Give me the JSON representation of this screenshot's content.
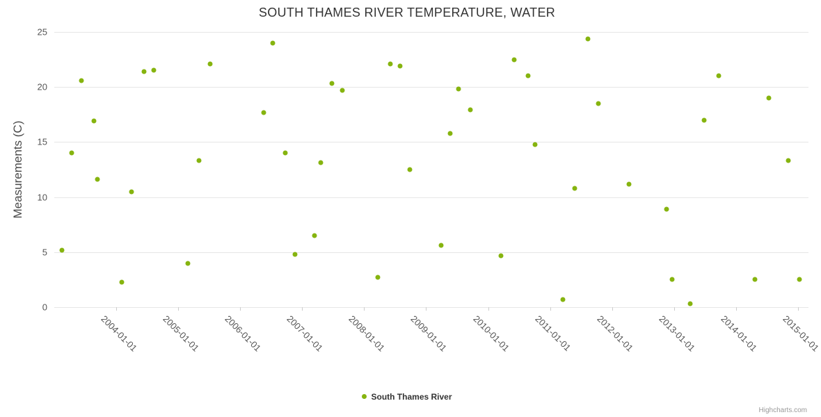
{
  "chart": {
    "title": "SOUTH THAMES RIVER TEMPERATURE, WATER",
    "y_axis_title": "Measurements (C)",
    "legend_label": "South Thames River",
    "credits": "Highcharts.com",
    "accent_color": "#86b40f"
  },
  "chart_data": {
    "type": "scatter",
    "title": "SOUTH THAMES RIVER TEMPERATURE, WATER",
    "xlabel": "",
    "ylabel": "Measurements (C)",
    "x_unit": "decimal_year",
    "xlim": [
      2003.0,
      2015.17
    ],
    "ylim": [
      0,
      25
    ],
    "y_ticks": [
      0,
      5,
      10,
      15,
      20,
      25
    ],
    "x_ticks": [
      {
        "x": 2004,
        "label": "2004-01-01"
      },
      {
        "x": 2005,
        "label": "2005-01-01"
      },
      {
        "x": 2006,
        "label": "2006-01-01"
      },
      {
        "x": 2007,
        "label": "2007-01-01"
      },
      {
        "x": 2008,
        "label": "2008-01-01"
      },
      {
        "x": 2009,
        "label": "2009-01-01"
      },
      {
        "x": 2010,
        "label": "2010-01-01"
      },
      {
        "x": 2011,
        "label": "2011-01-01"
      },
      {
        "x": 2012,
        "label": "2012-01-01"
      },
      {
        "x": 2013,
        "label": "2013-01-01"
      },
      {
        "x": 2014,
        "label": "2014-01-01"
      },
      {
        "x": 2015,
        "label": "2015-01-01"
      }
    ],
    "grid": "horizontal",
    "legend_position": "bottom-center",
    "series": [
      {
        "name": "South Thames River",
        "color": "#86b40f",
        "points": [
          [
            2003.12,
            5.2
          ],
          [
            2003.28,
            14.0
          ],
          [
            2003.44,
            20.6
          ],
          [
            2003.64,
            16.9
          ],
          [
            2003.7,
            11.6
          ],
          [
            2004.09,
            2.3
          ],
          [
            2004.25,
            10.5
          ],
          [
            2004.45,
            21.4
          ],
          [
            2004.61,
            21.5
          ],
          [
            2005.16,
            4.0
          ],
          [
            2005.33,
            13.3
          ],
          [
            2005.51,
            22.1
          ],
          [
            2006.38,
            17.7
          ],
          [
            2006.53,
            24.0
          ],
          [
            2006.73,
            14.0
          ],
          [
            2006.89,
            4.8
          ],
          [
            2007.2,
            6.5
          ],
          [
            2007.3,
            13.1
          ],
          [
            2007.48,
            20.3
          ],
          [
            2007.65,
            19.7
          ],
          [
            2008.22,
            2.7
          ],
          [
            2008.42,
            22.1
          ],
          [
            2008.58,
            21.9
          ],
          [
            2008.74,
            12.5
          ],
          [
            2009.24,
            5.6
          ],
          [
            2009.39,
            15.8
          ],
          [
            2009.52,
            19.8
          ],
          [
            2009.71,
            17.9
          ],
          [
            2010.21,
            4.7
          ],
          [
            2010.42,
            22.5
          ],
          [
            2010.65,
            21.0
          ],
          [
            2010.76,
            14.8
          ],
          [
            2011.21,
            0.7
          ],
          [
            2011.4,
            10.8
          ],
          [
            2011.61,
            24.4
          ],
          [
            2011.78,
            18.5
          ],
          [
            2012.27,
            11.2
          ],
          [
            2012.88,
            8.9
          ],
          [
            2012.97,
            2.5
          ],
          [
            2013.26,
            0.3
          ],
          [
            2013.49,
            17.0
          ],
          [
            2013.72,
            21.0
          ],
          [
            2014.31,
            2.5
          ],
          [
            2014.53,
            19.0
          ],
          [
            2014.84,
            13.3
          ],
          [
            2015.02,
            2.5
          ]
        ]
      }
    ]
  }
}
